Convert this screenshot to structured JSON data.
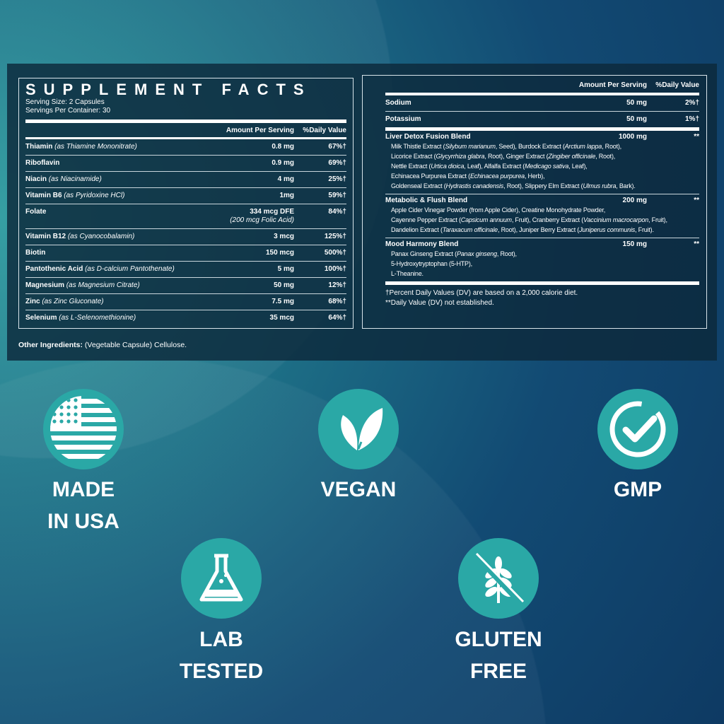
{
  "facts": {
    "title": "SUPPLEMENT FACTS",
    "serving_size": "Serving Size: 2 Capsules",
    "servings_per_container": "Servings Per Container: 30",
    "col_amount": "Amount Per Serving",
    "col_dv": "%Daily Value",
    "rows": [
      {
        "name": "Thiamin",
        "source": "(as Thiamine Mononitrate)",
        "amount": "0.8 mg",
        "dv": "67%†"
      },
      {
        "name": "Riboflavin",
        "source": "",
        "amount": "0.9 mg",
        "dv": "69%†"
      },
      {
        "name": "Niacin",
        "source": "(as Niacinamide)",
        "amount": "4 mg",
        "dv": "25%†"
      },
      {
        "name": "Vitamin B6",
        "source": "(as Pyridoxine HCl)",
        "amount": "1mg",
        "dv": "59%†"
      },
      {
        "name": "Folate",
        "source": "",
        "amount": "334 mcg DFE",
        "amount_note": "(200 mcg Folic Acid)",
        "dv": "84%†"
      },
      {
        "name": "Vitamin B12",
        "source": "(as Cyanocobalamin)",
        "amount": "3 mcg",
        "dv": "125%†"
      },
      {
        "name": "Biotin",
        "source": "",
        "amount": "150 mcg",
        "dv": "500%†"
      },
      {
        "name": "Pantothenic Acid",
        "source": "(as D-calcium Pantothenate)",
        "amount": "5 mg",
        "dv": "100%†"
      },
      {
        "name": "Magnesium",
        "source": "(as Magnesium Citrate)",
        "amount": "50 mg",
        "dv": "12%†"
      },
      {
        "name": "Zinc",
        "source": "(as Zinc Gluconate)",
        "amount": "7.5 mg",
        "dv": "68%†"
      },
      {
        "name": "Selenium",
        "source": "(as L-Selenomethionine)",
        "amount": "35 mcg",
        "dv": "64%†"
      }
    ],
    "minerals": [
      {
        "name": "Sodium",
        "amount": "50 mg",
        "dv": "2%†"
      },
      {
        "name": "Potassium",
        "amount": "50 mg",
        "dv": "1%†"
      }
    ],
    "blends": [
      {
        "name": "Liver Detox Fusion Blend",
        "amount": "1000 mg",
        "dv": "**",
        "lines": [
          [
            [
              "Milk Thistle Extract (",
              0
            ],
            [
              "Silybum marianum",
              1
            ],
            [
              ", Seed), Burdock Extract (",
              0
            ],
            [
              "Arctium lappa",
              1
            ],
            [
              ", Root),",
              0
            ]
          ],
          [
            [
              "Licorice Extract (",
              0
            ],
            [
              "Glycyrrhiza glabra",
              1
            ],
            [
              ", Root), Ginger Extract (",
              0
            ],
            [
              "Zingiber officinale",
              1
            ],
            [
              ", Root),",
              0
            ]
          ],
          [
            [
              "Nettle Extract (",
              0
            ],
            [
              "Urtica dioica",
              1
            ],
            [
              ", Leaf), Alfalfa Extract (",
              0
            ],
            [
              "Medicago sativa",
              1
            ],
            [
              ", Leaf),",
              0
            ]
          ],
          [
            [
              "Echinacea Purpurea Extract (",
              0
            ],
            [
              "Echinacea purpurea",
              1
            ],
            [
              ", Herb),",
              0
            ]
          ],
          [
            [
              "Goldenseal Extract (",
              0
            ],
            [
              "Hydrastis canadensis",
              1
            ],
            [
              ", Root), Slippery Elm Extract (",
              0
            ],
            [
              "Ulmus rubra",
              1
            ],
            [
              ", Bark).",
              0
            ]
          ]
        ]
      },
      {
        "name": "Metabolic & Flush Blend",
        "amount": "200 mg",
        "dv": "**",
        "lines": [
          [
            [
              "Apple Cider Vinegar Powder (from Apple Cider), Creatine Monohydrate Powder,",
              0
            ]
          ],
          [
            [
              "Cayenne Pepper Extract (",
              0
            ],
            [
              "Capsicum annuum",
              1
            ],
            [
              ", Fruit), Cranberry Extract (",
              0
            ],
            [
              "Vaccinium macrocarpon",
              1
            ],
            [
              ", Fruit),",
              0
            ]
          ],
          [
            [
              "Dandelion Extract (",
              0
            ],
            [
              "Taraxacum officinale",
              1
            ],
            [
              ", Root), Juniper Berry Extract (",
              0
            ],
            [
              "Juniperus communis",
              1
            ],
            [
              ", Fruit).",
              0
            ]
          ]
        ]
      },
      {
        "name": "Mood Harmony Blend",
        "amount": "150 mg",
        "dv": "**",
        "lines": [
          [
            [
              "Panax Ginseng Extract (",
              0
            ],
            [
              "Panax ginseng",
              1
            ],
            [
              ", Root),",
              0
            ]
          ],
          [
            [
              "5-Hydroxytryptophan (5-HTP),",
              0
            ]
          ],
          [
            [
              "L-Theanine.",
              0
            ]
          ]
        ]
      }
    ],
    "footnote1": "†Percent Daily Values (DV) are based on a 2,000 calorie diet.",
    "footnote2": "**Daily Value (DV) not established.",
    "other_label": "Other Ingredients:",
    "other_value": " (Vegetable Capsule) Cellulose."
  },
  "badges": [
    {
      "icon": "usa-flag-icon",
      "line1": "MADE",
      "line2": "IN USA"
    },
    {
      "icon": "leaf-icon",
      "line1": "VEGAN",
      "line2": ""
    },
    {
      "icon": "checkmark-icon",
      "line1": "GMP",
      "line2": ""
    },
    {
      "icon": "flask-icon",
      "line1": "LAB",
      "line2": "TESTED"
    },
    {
      "icon": "wheat-icon",
      "line1": "GLUTEN",
      "line2": "FREE"
    }
  ],
  "colors": {
    "badge": "#2aa8a6",
    "panel": "#0c283a"
  }
}
